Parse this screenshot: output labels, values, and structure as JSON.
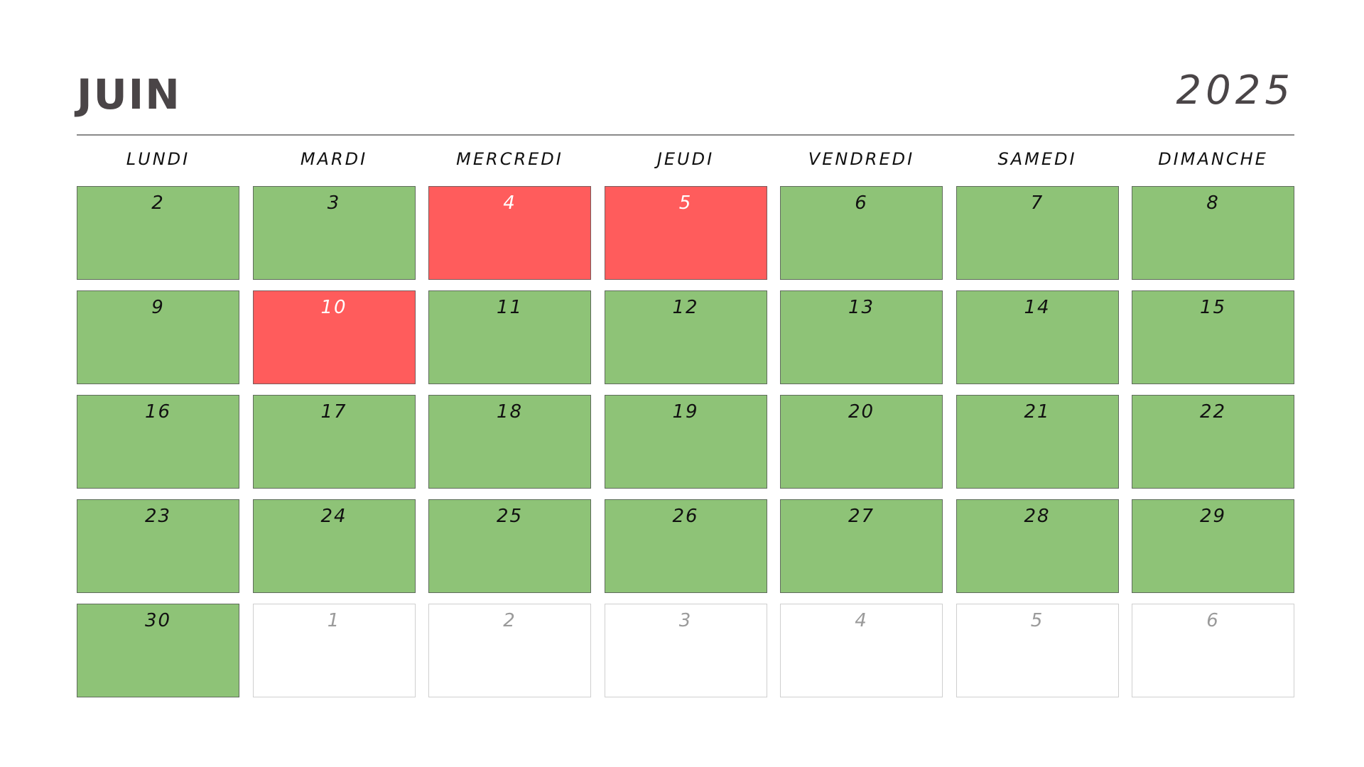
{
  "header": {
    "month": "JUIN",
    "year": "2025"
  },
  "weekdays": [
    "LUNDI",
    "MARDI",
    "MERCREDI",
    "JEUDI",
    "VENDREDI",
    "SAMEDI",
    "DIMANCHE"
  ],
  "colors": {
    "available": "#8ec377",
    "busy": "#ff5c5c",
    "outside": "#ffffff",
    "text": "#111111",
    "title": "#4a4547"
  },
  "weeks": [
    [
      {
        "day": "2",
        "status": "available"
      },
      {
        "day": "3",
        "status": "available"
      },
      {
        "day": "4",
        "status": "busy"
      },
      {
        "day": "5",
        "status": "busy"
      },
      {
        "day": "6",
        "status": "available"
      },
      {
        "day": "7",
        "status": "available"
      },
      {
        "day": "8",
        "status": "available"
      }
    ],
    [
      {
        "day": "9",
        "status": "available"
      },
      {
        "day": "10",
        "status": "busy"
      },
      {
        "day": "11",
        "status": "available"
      },
      {
        "day": "12",
        "status": "available"
      },
      {
        "day": "13",
        "status": "available"
      },
      {
        "day": "14",
        "status": "available"
      },
      {
        "day": "15",
        "status": "available"
      }
    ],
    [
      {
        "day": "16",
        "status": "available"
      },
      {
        "day": "17",
        "status": "available"
      },
      {
        "day": "18",
        "status": "available"
      },
      {
        "day": "19",
        "status": "available"
      },
      {
        "day": "20",
        "status": "available"
      },
      {
        "day": "21",
        "status": "available"
      },
      {
        "day": "22",
        "status": "available"
      }
    ],
    [
      {
        "day": "23",
        "status": "available"
      },
      {
        "day": "24",
        "status": "available"
      },
      {
        "day": "25",
        "status": "available"
      },
      {
        "day": "26",
        "status": "available"
      },
      {
        "day": "27",
        "status": "available"
      },
      {
        "day": "28",
        "status": "available"
      },
      {
        "day": "29",
        "status": "available"
      }
    ],
    [
      {
        "day": "30",
        "status": "available"
      },
      {
        "day": "1",
        "status": "outside"
      },
      {
        "day": "2",
        "status": "outside"
      },
      {
        "day": "3",
        "status": "outside"
      },
      {
        "day": "4",
        "status": "outside"
      },
      {
        "day": "5",
        "status": "outside"
      },
      {
        "day": "6",
        "status": "outside"
      }
    ]
  ]
}
